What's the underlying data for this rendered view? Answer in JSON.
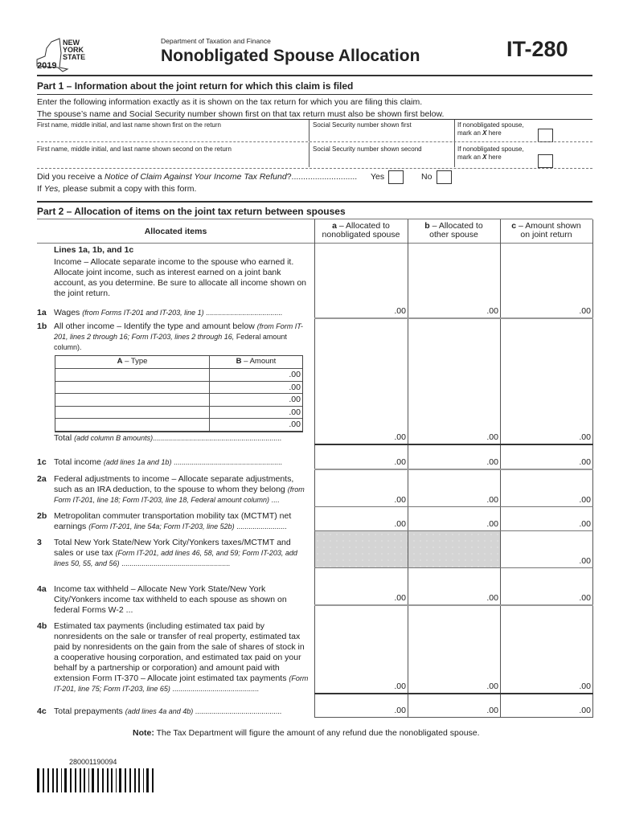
{
  "header": {
    "logo": {
      "state_text": "NEW YORK STATE",
      "line1": "NEW",
      "line2": "YORK",
      "line3": "STATE",
      "year": "2019"
    },
    "department": "Department of Taxation and Finance",
    "title": "Nonobligated Spouse Allocation",
    "form_number": "IT-280"
  },
  "part1": {
    "title": "Part 1 – Information about the joint return for which this claim is filed",
    "intro1": "Enter the following information exactly as it is shown on the tax return for which you are filing this claim.",
    "intro2": "The spouse’s name and Social Security number shown first on that tax return must also be shown first below.",
    "row1": {
      "name_label": "First name, middle initial, and last name shown first on the return",
      "ssn_label": "Social Security number shown first",
      "mark_label1": "If nonobligated spouse,",
      "mark_label2a": "mark an ",
      "mark_x": "X",
      "mark_label2b": " here"
    },
    "row2": {
      "name_label": "First name, middle initial, and last name shown second on the return",
      "ssn_label": "Social Security number shown second",
      "mark_label1": "If nonobligated spouse,",
      "mark_label2a": "mark an ",
      "mark_x": "X",
      "mark_label2b": " here"
    },
    "question_a": "Did you receive a ",
    "question_i": "Notice of Claim Against Your Income Tax Refund",
    "question_b": "?............................",
    "yes": "Yes",
    "no": "No",
    "followup_a": "If ",
    "followup_i": "Yes,",
    "followup_b": " please submit a copy with this form."
  },
  "part2": {
    "title": "Part 2 – Allocation of items on the joint tax return between spouses",
    "col_items": "Allocated items",
    "col_a": {
      "letter": "a",
      "line1": " – Allocated to",
      "line2": "nonobligated spouse"
    },
    "col_b": {
      "letter": "b",
      "line1": " – Allocated to",
      "line2": "other spouse"
    },
    "col_c": {
      "letter": "c",
      "line1": " – Amount shown",
      "line2": "on joint return"
    },
    "lines_heading": "Lines 1a, 1b, and 1c",
    "income_text": "Income – Allocate separate income to the spouse who earned it. Allocate joint income, such as interest earned on a joint bank account, as you determine. Be sure to allocate all income shown on the joint return.",
    "cents": ".00",
    "rows": [
      {
        "num": "1a",
        "text": "Wages ",
        "italic": "(from Forms IT-201 and IT-203, line 1)",
        "tail": " ......................................"
      },
      {
        "num": "1b",
        "text": "All other income – Identify the type and amount below ",
        "italic": "(from Form IT-201, lines 2 through 16; Form IT-203, lines 2 through 16,",
        "tail": " Federal amount column)."
      },
      {
        "num": "",
        "text": "Total ",
        "italic": "(add column B amounts)",
        "tail": "................................................................"
      },
      {
        "num": "1c",
        "text": "Total income ",
        "italic": "(add lines 1a and 1b)",
        "tail": " ......................................................"
      },
      {
        "num": "2a",
        "text": "Federal adjustments to income – Allocate separate adjustments, such as an IRA deduction, to the spouse to whom they belong ",
        "italic": "(from Form IT-201, line 18; Form IT-203, line 18, Federal amount column)",
        "tail": " ...."
      },
      {
        "num": "2b",
        "text": "Metropolitan commuter transportation mobility tax (MCTMT) net earnings ",
        "italic": "(Form IT-201, line 54a; Form IT-203, line 52b)",
        "tail": " ........................."
      },
      {
        "num": "3",
        "text": "Total New York State/New York City/Yonkers taxes/MCTMT and sales or use tax ",
        "italic": "(Form IT-201, add lines 46, 58, and 59; Form IT-203, add lines 50, 55, and 56)",
        "tail": " ......................................................"
      },
      {
        "num": "4a",
        "text": "Income tax withheld – Allocate New York State/New York City/Yonkers income tax withheld to each spouse as shown on federal Forms W-2 ...",
        "italic": "",
        "tail": ""
      },
      {
        "num": "4b",
        "text": "Estimated tax payments (including estimated tax paid by nonresidents on the sale or transfer of real property, estimated tax paid by nonresidents on the gain from the sale of shares of stock in a cooperative housing corporation, and estimated tax paid on your behalf by a partnership or corporation) and amount paid with extension Form IT-370 – Allocate joint estimated tax payments ",
        "italic": "(Form IT-201, line 75; Form IT-203, line 65)",
        "tail": " ..........................................."
      },
      {
        "num": "4c",
        "text": "Total prepayments ",
        "italic": "(add lines 4a and 4b)",
        "tail": " ..........................................."
      }
    ],
    "subtable": {
      "col_a_letter": "A",
      "col_a": " – Type",
      "col_b_letter": "B",
      "col_b": " – Amount",
      "row_count": 5
    }
  },
  "note": {
    "label": "Note:",
    "text": " The Tax Department will figure the amount of any refund due the nonobligated spouse."
  },
  "barcode": {
    "number": "280001190094"
  },
  "colors": {
    "rule": "#333333",
    "shaded": "#d4d4d4"
  }
}
